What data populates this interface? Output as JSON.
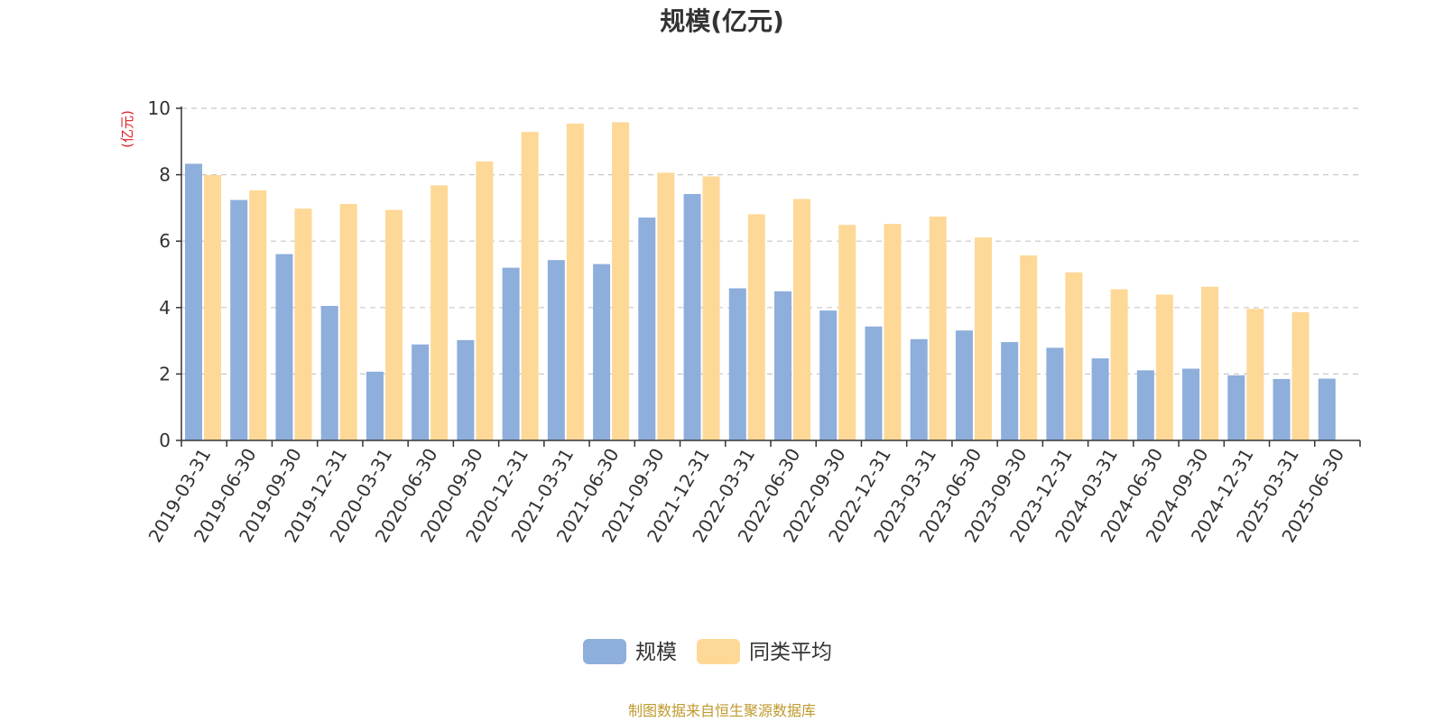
{
  "chart_data": {
    "type": "bar",
    "title": "规模(亿元)",
    "ylabel": "(亿元)",
    "xlabel": "",
    "ylim": [
      0,
      10
    ],
    "yticks": [
      0,
      2,
      4,
      6,
      8,
      10
    ],
    "grid": true,
    "legend_position": "bottom",
    "categories": [
      "2019-03-31",
      "2019-06-30",
      "2019-09-30",
      "2019-12-31",
      "2020-03-31",
      "2020-06-30",
      "2020-09-30",
      "2020-12-31",
      "2021-03-31",
      "2021-06-30",
      "2021-09-30",
      "2021-12-31",
      "2022-03-31",
      "2022-06-30",
      "2022-09-30",
      "2022-12-31",
      "2023-03-31",
      "2023-06-30",
      "2023-09-30",
      "2023-12-31",
      "2024-03-31",
      "2024-06-30",
      "2024-09-30",
      "2024-12-31",
      "2025-03-31",
      "2025-06-30"
    ],
    "series": [
      {
        "name": "规模",
        "color": "#8eaedb",
        "values": [
          8.33,
          7.24,
          5.61,
          4.05,
          2.07,
          2.89,
          3.02,
          5.2,
          5.43,
          5.31,
          6.71,
          7.42,
          4.58,
          4.49,
          3.91,
          3.43,
          3.05,
          3.31,
          2.96,
          2.79,
          2.47,
          2.11,
          2.16,
          1.96,
          1.85,
          1.86
        ]
      },
      {
        "name": "同类平均",
        "color": "#fed897",
        "values": [
          7.99,
          7.53,
          6.98,
          7.12,
          6.94,
          7.68,
          8.4,
          9.29,
          9.54,
          9.58,
          8.06,
          7.95,
          6.81,
          7.27,
          6.49,
          6.52,
          6.74,
          6.11,
          5.57,
          5.06,
          4.55,
          4.39,
          4.63,
          3.96,
          3.86,
          null
        ]
      }
    ]
  },
  "footer": {
    "source_text": "制图数据来自恒生聚源数据库",
    "source_color": "#c09a2e"
  },
  "colors": {
    "unit_label": "#e02020",
    "axis": "#333333",
    "grid": "#c8c8c8"
  }
}
